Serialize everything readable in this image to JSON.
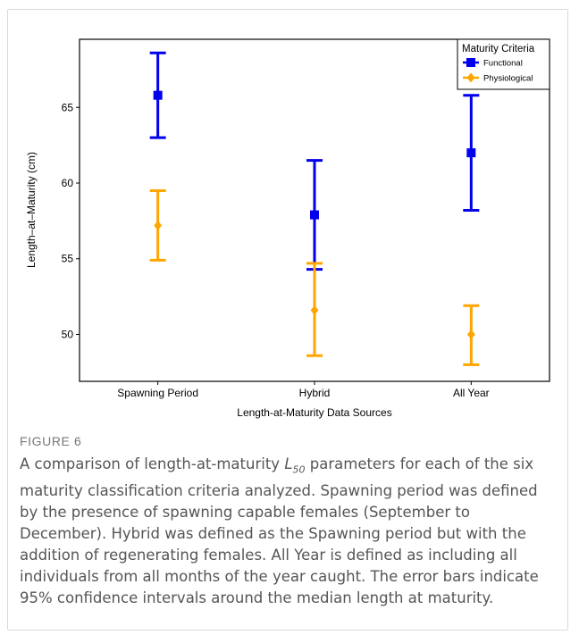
{
  "chart_data": {
    "type": "scatter",
    "subtype": "point-with-error-bars",
    "categories": [
      "Spawning Period",
      "Hybrid",
      "All Year"
    ],
    "series": [
      {
        "name": "Functional",
        "color": "#0000ee",
        "marker": "square",
        "values": [
          65.8,
          57.9,
          62.0
        ],
        "lower": [
          63.0,
          54.3,
          58.2
        ],
        "upper": [
          68.6,
          61.5,
          65.8
        ]
      },
      {
        "name": "Physiological",
        "color": "#ffa500",
        "marker": "diamond",
        "values": [
          57.2,
          51.6,
          50.0
        ],
        "lower": [
          54.9,
          48.6,
          48.0
        ],
        "upper": [
          59.5,
          54.7,
          51.9
        ]
      }
    ],
    "xlabel": "Length-at-Maturity Data Sources",
    "ylabel": "Length–at–Maturity (cm)",
    "yticks": [
      50,
      55,
      60,
      65
    ],
    "ylim": [
      46.9,
      69.5
    ],
    "grid": false,
    "legend": {
      "title": "Maturity Criteria",
      "position": "top-right"
    }
  },
  "figure": {
    "label": "FIGURE 6",
    "caption_pre": "A comparison of length-at-maturity ",
    "caption_symbol": "L",
    "caption_sub": "50",
    "caption_post": " parameters for each of the six maturity classification criteria analyzed. Spawning period was defined by the presence of spawning capable females (September to December). Hybrid was defined as the Spawning period but with the addition of regenerating females. All Year is defined as including all individuals from all months of the year caught. The error bars indicate 95% confidence intervals around the median length at maturity."
  }
}
